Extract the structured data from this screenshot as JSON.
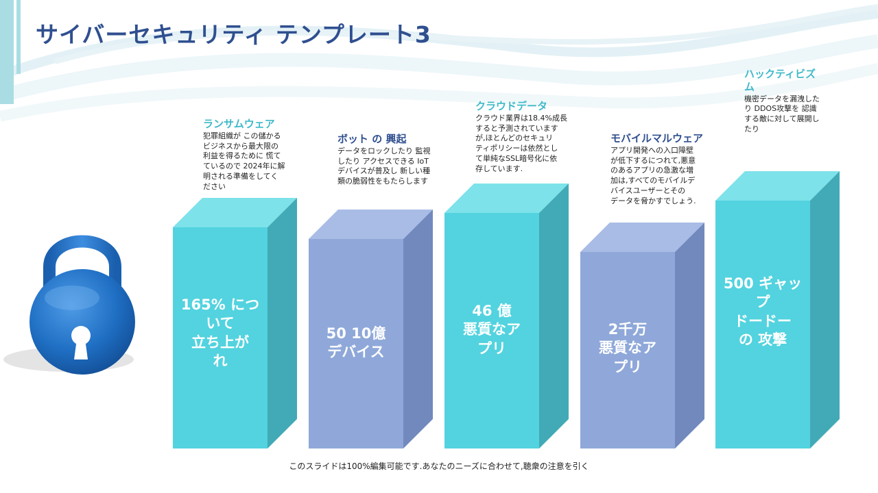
{
  "slide": {
    "title": "サイバーセキュリティ テンプレート3",
    "footer": "このスライドは100%編集可能です.あなたのニーズに合わせて,聴衆の注意を引く"
  },
  "colors": {
    "teal_front": "#52d3df",
    "teal_top": "#7de2ea",
    "teal_side": "#42aab6",
    "lav_front": "#8fa8d9",
    "lav_top": "#a9bce6",
    "lav_side": "#7189bd",
    "title": "#2f4f8f",
    "caption_title_teal": "#3fb9c9",
    "caption_title_dark": "#2f4f8f",
    "lock_blue": "#1f6fc4"
  },
  "blocks": [
    {
      "id": "ransomware",
      "color": "teal",
      "label_lines": [
        "165% につ",
        "いて",
        "立ち上が",
        "れ"
      ],
      "caption": {
        "title": "ランサムウェア",
        "title_color": "teal",
        "body_lines": [
          "犯罪組織が この儲かる",
          "ビジネスから最大限の",
          "利益を得るために 慌て",
          "ているので 2024年に解",
          "明される準備をしてく",
          "ださい"
        ]
      }
    },
    {
      "id": "bots",
      "color": "lavender",
      "label_lines": [
        "50 10億",
        "デバイス"
      ],
      "caption": {
        "title": "ボット の 興起",
        "title_color": "dark",
        "body_lines": [
          "データをロックしたり 監視",
          "したり アクセスできる IoT",
          "デバイスが普及し 新しい種",
          "類の脆弱性をもたらします"
        ]
      }
    },
    {
      "id": "cloud",
      "color": "teal",
      "label_lines": [
        "46 億",
        "悪質なア",
        "プリ"
      ],
      "caption": {
        "title": "クラウドデータ",
        "title_color": "teal",
        "body_lines": [
          "クラウド業界は18.4%成長",
          "すると予測されています",
          "が,ほとんどのセキュリ",
          "ティポリシーは依然とし",
          "て単純なSSL暗号化に依",
          "存しています."
        ]
      }
    },
    {
      "id": "mobile",
      "color": "lavender",
      "label_lines": [
        "2千万",
        "悪質なア",
        "プリ"
      ],
      "caption": {
        "title": "モバイルマルウェア",
        "title_color": "dark",
        "body_lines": [
          "アプリ開発への入口障壁",
          "が低下するにつれて,悪意",
          "のあるアプリの急激な増",
          "加は,すべてのモバイルデ",
          "バイスユーザーとその",
          "データを脅かすでしょう."
        ]
      }
    },
    {
      "id": "hacktivism",
      "color": "teal",
      "label_lines": [
        "500 ギャッ",
        "プ",
        "ドードー",
        "の 攻撃"
      ],
      "caption": {
        "title_lines": [
          "ハックティビズ",
          "ム"
        ],
        "title_color": "teal",
        "body_lines": [
          "機密データを漏洩した",
          "り DDOS攻撃を 認識",
          "する敵に対して展開し",
          "たり"
        ]
      }
    }
  ]
}
